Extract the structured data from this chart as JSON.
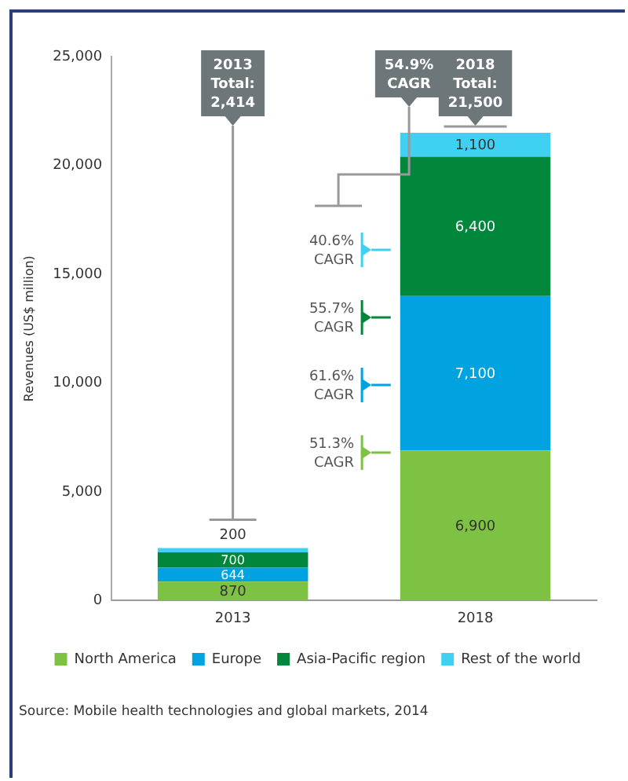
{
  "chart_data": {
    "type": "bar",
    "stacked": true,
    "categories": [
      "2013",
      "2018"
    ],
    "series": [
      {
        "name": "North America",
        "color": "#7dc242",
        "values": [
          870,
          6900
        ],
        "value_labels": [
          "870",
          "6,900"
        ]
      },
      {
        "name": "Europe",
        "color": "#00a3e0",
        "values": [
          644,
          7100
        ],
        "value_labels": [
          "644",
          "7,100"
        ]
      },
      {
        "name": "Asia-Pacific region",
        "color": "#00873c",
        "values": [
          700,
          6400
        ],
        "value_labels": [
          "700",
          "6,400"
        ]
      },
      {
        "name": "Rest of the world",
        "color": "#3fd0f2",
        "values": [
          200,
          1100
        ],
        "value_labels": [
          "200",
          "1,100"
        ]
      }
    ],
    "ylabel": "Revenues (US$ million)",
    "ylim": [
      0,
      25000
    ],
    "yticks": [
      {
        "value": 0,
        "label": "0"
      },
      {
        "value": 5000,
        "label": "5,000"
      },
      {
        "value": 10000,
        "label": "10,000"
      },
      {
        "value": 15000,
        "label": "15,000"
      },
      {
        "value": 20000,
        "label": "20,000"
      },
      {
        "value": 25000,
        "label": "25,000"
      }
    ],
    "legend": "bottom",
    "annotations": [
      "2013 Total: 2,414",
      "54.9% CAGR",
      "2018 Total: 21,500",
      "40.6% CAGR",
      "55.7% CAGR",
      "61.6% CAGR",
      "51.3% CAGR",
      "Source: Mobile health technologies and global markets, 2014"
    ]
  }
}
